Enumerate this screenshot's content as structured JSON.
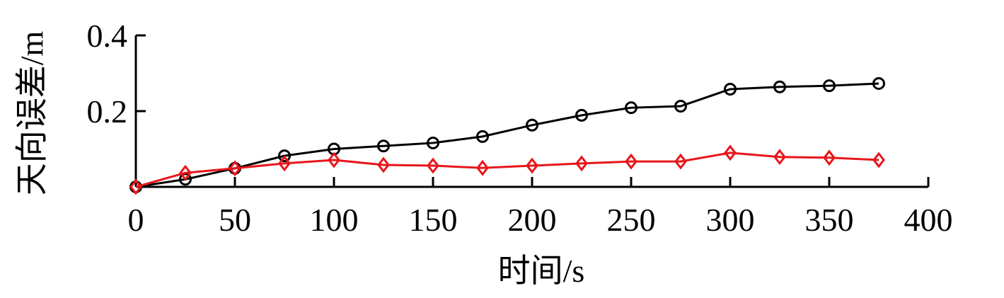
{
  "chart_data": {
    "type": "line",
    "x_label": "时间/s",
    "y_label": "天向误差/m",
    "x": [
      0,
      25,
      50,
      75,
      100,
      125,
      150,
      175,
      200,
      225,
      250,
      275,
      300,
      325,
      350,
      375
    ],
    "series": [
      {
        "color": "#000000",
        "marker": "circle",
        "values": [
          0,
          0.02,
          0.049,
          0.082,
          0.1,
          0.108,
          0.116,
          0.133,
          0.163,
          0.189,
          0.209,
          0.213,
          0.258,
          0.264,
          0.267,
          0.273
        ]
      },
      {
        "color": "#e8161b",
        "marker": "diamond",
        "values": [
          0,
          0.037,
          0.049,
          0.062,
          0.071,
          0.058,
          0.056,
          0.05,
          0.056,
          0.062,
          0.067,
          0.067,
          0.09,
          0.079,
          0.077,
          0.071
        ]
      }
    ],
    "xlim": [
      0,
      400
    ],
    "xticks": [
      0,
      50,
      100,
      150,
      200,
      250,
      300,
      350,
      400
    ],
    "ylim": [
      0,
      0.4
    ],
    "yticks": [
      0.2,
      0.4
    ]
  }
}
